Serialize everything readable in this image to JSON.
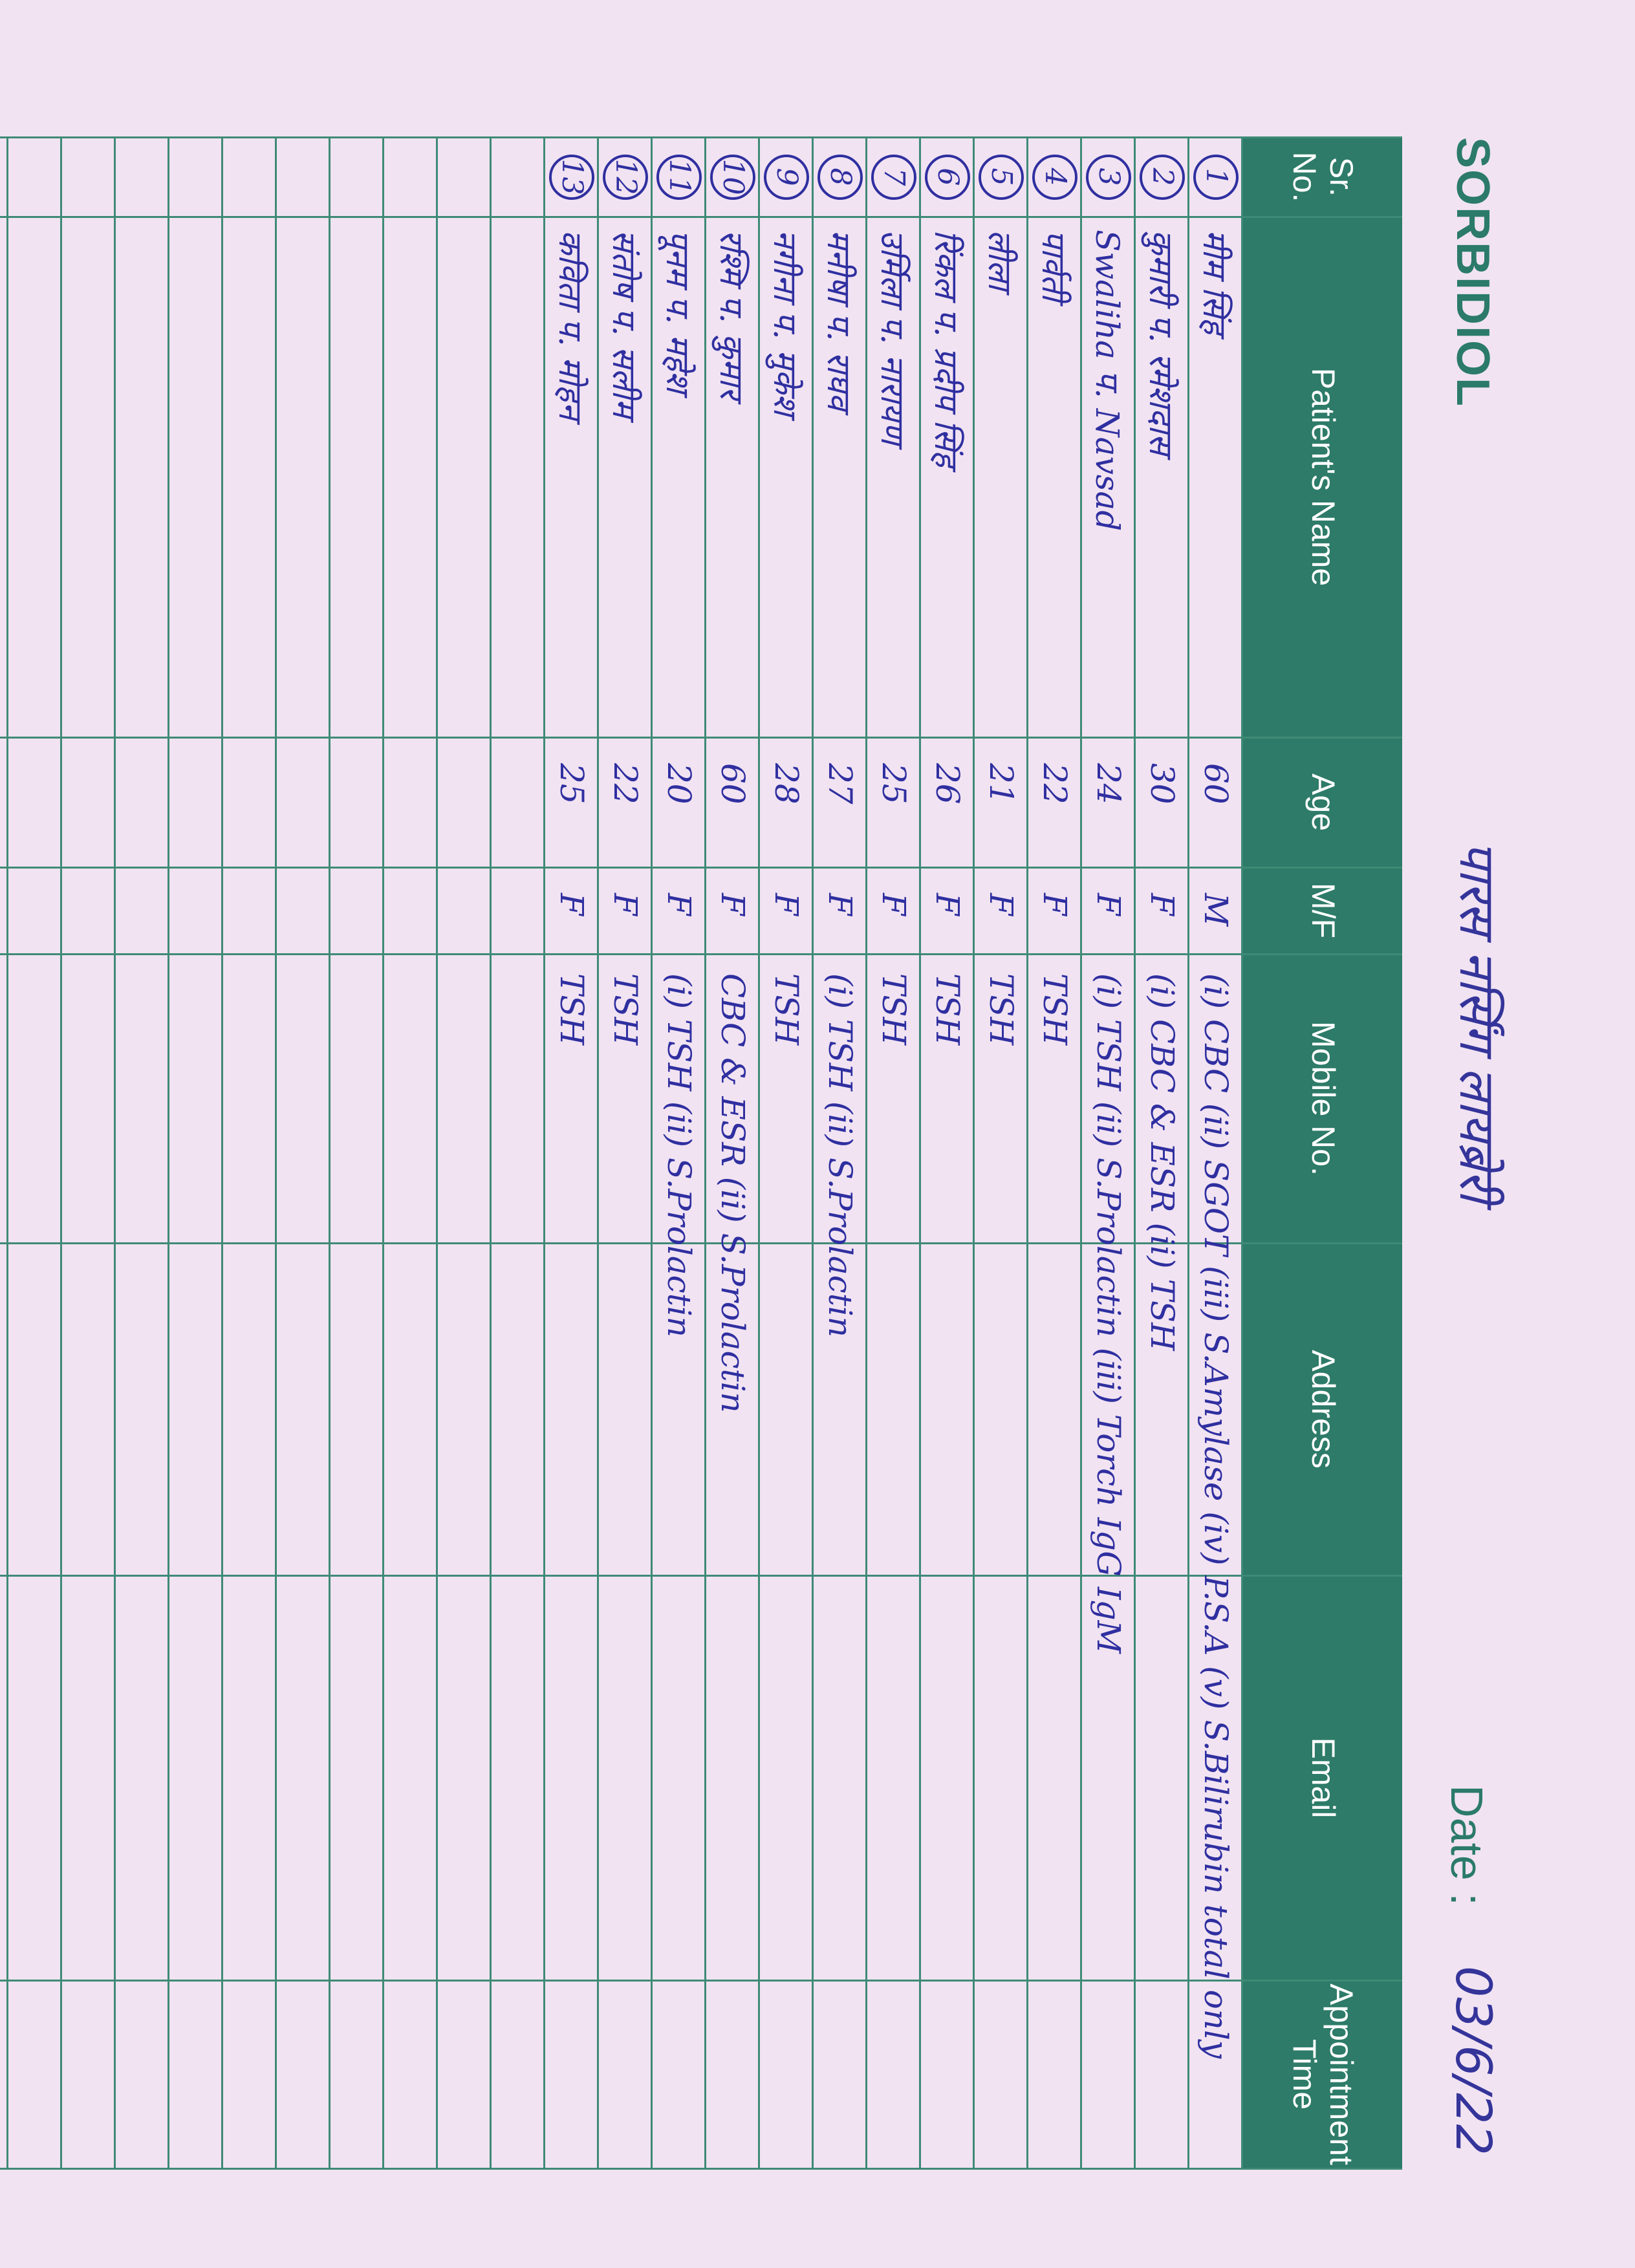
{
  "header": {
    "logo": "SORBIDIOL",
    "title": "पारस नर्सिंग लायब्रेरी",
    "date_label": "Date :",
    "date": "03/6/22"
  },
  "table": {
    "columns": [
      "Sr. No.",
      "Patient's Name",
      "Age",
      "M/F",
      "Mobile No.",
      "Address",
      "Email",
      "Appointment Time"
    ],
    "rows": [
      {
        "sr": "1",
        "name": "मीम सिंह",
        "age": "60",
        "sex": "M",
        "tests": "(i) CBC (ii) SGOT (iii) S.Amylase (iv) P.S.A (v) S.Bilirubin total only"
      },
      {
        "sr": "2",
        "name": "कुमारी प. रमेशदास",
        "age": "30",
        "sex": "F",
        "tests": "(i) CBC & ESR (ii) TSH"
      },
      {
        "sr": "3",
        "name": "Swaliha प. Navsad",
        "age": "24",
        "sex": "F",
        "tests": "(i) TSH (ii) S.Prolactin (iii) Torch IgG IgM"
      },
      {
        "sr": "4",
        "name": "पार्वती",
        "age": "22",
        "sex": "F",
        "tests": "TSH"
      },
      {
        "sr": "5",
        "name": "लीला",
        "age": "21",
        "sex": "F",
        "tests": "TSH"
      },
      {
        "sr": "6",
        "name": "रिंकल प. प्रदीप सिंह",
        "age": "26",
        "sex": "F",
        "tests": "TSH"
      },
      {
        "sr": "7",
        "name": "उर्मिला प. नारायण",
        "age": "25",
        "sex": "F",
        "tests": "TSH"
      },
      {
        "sr": "8",
        "name": "मनीषा प. राघव",
        "age": "27",
        "sex": "F",
        "tests": "(i) TSH (ii) S.Prolactin"
      },
      {
        "sr": "9",
        "name": "नगीना प. मुकेश",
        "age": "28",
        "sex": "F",
        "tests": "TSH"
      },
      {
        "sr": "10",
        "name": "रश्मि प. कुमार",
        "age": "60",
        "sex": "F",
        "tests": "CBC & ESR (ii) S.Prolactin"
      },
      {
        "sr": "11",
        "name": "पूनम प. महेश",
        "age": "20",
        "sex": "F",
        "tests": "(i) TSH (ii) S.Prolactin"
      },
      {
        "sr": "12",
        "name": "संतोष प. सलीम",
        "age": "22",
        "sex": "F",
        "tests": "TSH"
      },
      {
        "sr": "13",
        "name": "कविता प. मोहन",
        "age": "25",
        "sex": "F",
        "tests": "TSH"
      }
    ]
  }
}
